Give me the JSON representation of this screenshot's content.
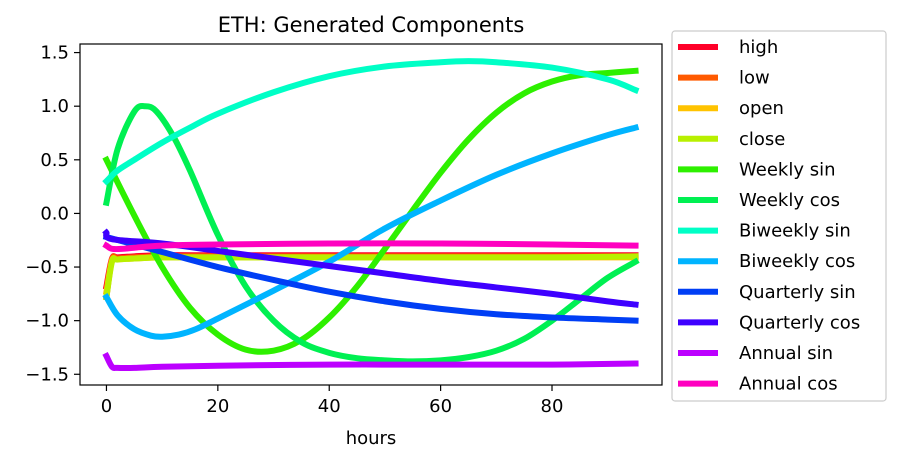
{
  "chart_data": {
    "type": "line",
    "title": "ETH: Generated Components",
    "xlabel": "hours",
    "ylabel": "",
    "xlim": [
      -4.75,
      99.75
    ],
    "ylim": [
      -1.6,
      1.58
    ],
    "xticks": [
      0,
      20,
      40,
      60,
      80
    ],
    "yticks": [
      -1.5,
      -1.0,
      -0.5,
      0.0,
      0.5,
      1.0,
      1.5
    ],
    "ytick_labels": [
      "−1.5",
      "−1.0",
      "−0.5",
      "0.0",
      "0.5",
      "1.0",
      "1.5"
    ],
    "grid": false,
    "legend_position": "outside-right",
    "series": [
      {
        "name": "high",
        "color": "#ff0029",
        "x": [
          0,
          1,
          2,
          5,
          10,
          20,
          40,
          60,
          80,
          95
        ],
        "y": [
          -0.68,
          -0.42,
          -0.41,
          -0.4,
          -0.39,
          -0.39,
          -0.39,
          -0.39,
          -0.39,
          -0.39
        ]
      },
      {
        "name": "low",
        "color": "#ff5a00",
        "x": [
          0,
          1,
          2,
          5,
          10,
          20,
          40,
          60,
          80,
          95
        ],
        "y": [
          -0.78,
          -0.43,
          -0.42,
          -0.41,
          -0.4,
          -0.4,
          -0.4,
          -0.4,
          -0.4,
          -0.4
        ]
      },
      {
        "name": "open",
        "color": "#ffc300",
        "x": [
          0,
          1,
          2,
          5,
          10,
          20,
          40,
          60,
          80,
          95
        ],
        "y": [
          -0.73,
          -0.44,
          -0.43,
          -0.42,
          -0.41,
          -0.41,
          -0.41,
          -0.41,
          -0.41,
          -0.41
        ]
      },
      {
        "name": "close",
        "color": "#b8f000",
        "x": [
          0,
          1,
          2,
          5,
          10,
          20,
          40,
          60,
          80,
          95
        ],
        "y": [
          -0.78,
          -0.45,
          -0.43,
          -0.42,
          -0.41,
          -0.41,
          -0.41,
          -0.41,
          -0.41,
          -0.4
        ]
      },
      {
        "name": "Weekly sin",
        "color": "#2ef000",
        "x": [
          0,
          5,
          10,
          15,
          20,
          25,
          30,
          35,
          40,
          45,
          50,
          55,
          60,
          65,
          70,
          75,
          80,
          85,
          90,
          95
        ],
        "y": [
          0.5,
          -0.02,
          -0.5,
          -0.88,
          -1.13,
          -1.27,
          -1.28,
          -1.18,
          -0.97,
          -0.68,
          -0.33,
          0.03,
          0.38,
          0.69,
          0.94,
          1.12,
          1.23,
          1.29,
          1.31,
          1.33
        ]
      },
      {
        "name": "Weekly cos",
        "color": "#00f052",
        "x": [
          0,
          2,
          5,
          7,
          9,
          12,
          15,
          20,
          25,
          30,
          35,
          40,
          45,
          50,
          55,
          60,
          65,
          70,
          75,
          80,
          85,
          90,
          95
        ],
        "y": [
          0.1,
          0.6,
          0.95,
          1.0,
          0.95,
          0.72,
          0.4,
          -0.2,
          -0.68,
          -1.0,
          -1.2,
          -1.3,
          -1.35,
          -1.37,
          -1.38,
          -1.37,
          -1.34,
          -1.28,
          -1.17,
          -1.0,
          -0.8,
          -0.6,
          -0.45
        ]
      },
      {
        "name": "Biweekly sin",
        "color": "#00ffc6",
        "x": [
          0,
          2,
          5,
          10,
          15,
          20,
          30,
          40,
          50,
          60,
          65,
          70,
          80,
          90,
          95
        ],
        "y": [
          0.3,
          0.4,
          0.5,
          0.66,
          0.8,
          0.93,
          1.13,
          1.28,
          1.37,
          1.41,
          1.42,
          1.41,
          1.36,
          1.25,
          1.15
        ]
      },
      {
        "name": "Biweekly cos",
        "color": "#00b4ff",
        "x": [
          0,
          2,
          5,
          8,
          10,
          13,
          16,
          20,
          30,
          40,
          50,
          60,
          70,
          80,
          90,
          95
        ],
        "y": [
          -0.78,
          -0.95,
          -1.08,
          -1.14,
          -1.15,
          -1.13,
          -1.08,
          -0.98,
          -0.72,
          -0.45,
          -0.14,
          0.12,
          0.36,
          0.56,
          0.73,
          0.8
        ]
      },
      {
        "name": "Quarterly sin",
        "color": "#003ef5",
        "x": [
          0,
          10,
          20,
          30,
          40,
          50,
          60,
          70,
          80,
          90,
          95
        ],
        "y": [
          -0.22,
          -0.36,
          -0.5,
          -0.62,
          -0.73,
          -0.82,
          -0.89,
          -0.94,
          -0.97,
          -0.99,
          -1.0
        ]
      },
      {
        "name": "Quarterly cos",
        "color": "#3e00ff",
        "x": [
          0,
          1,
          10,
          20,
          30,
          40,
          50,
          60,
          70,
          80,
          90,
          95
        ],
        "y": [
          -0.18,
          -0.24,
          -0.28,
          -0.35,
          -0.42,
          -0.49,
          -0.56,
          -0.63,
          -0.69,
          -0.75,
          -0.82,
          -0.85
        ]
      },
      {
        "name": "Annual sin",
        "color": "#bc00ff",
        "x": [
          0,
          1,
          2,
          5,
          10,
          20,
          40,
          60,
          80,
          95
        ],
        "y": [
          -1.33,
          -1.43,
          -1.44,
          -1.44,
          -1.43,
          -1.42,
          -1.41,
          -1.41,
          -1.41,
          -1.4
        ]
      },
      {
        "name": "Annual cos",
        "color": "#ff00c0",
        "x": [
          0,
          1,
          3,
          5,
          10,
          20,
          40,
          60,
          80,
          95
        ],
        "y": [
          -0.3,
          -0.33,
          -0.33,
          -0.32,
          -0.3,
          -0.29,
          -0.28,
          -0.28,
          -0.29,
          -0.3
        ]
      }
    ]
  }
}
